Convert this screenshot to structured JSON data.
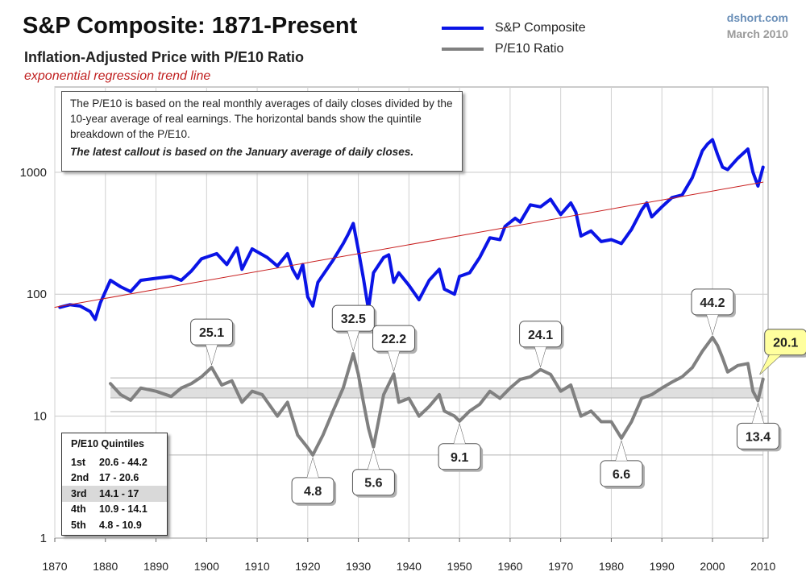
{
  "header": {
    "title": "S&P Composite: 1871-Present",
    "subtitle": "Inflation-Adjusted Price with P/E10 Ratio",
    "trend_note": "exponential regression trend line",
    "source_site": "dshort.com",
    "source_date": "March 2010"
  },
  "legend": [
    {
      "label": "S&P Composite",
      "color": "#0a14e6"
    },
    {
      "label": "P/E10 Ratio",
      "color": "#808080"
    }
  ],
  "note": {
    "text": "The P/E10 is based on the real monthly averages of daily closes divided by the 10-year average of real earnings. The horizontal bands show the quintile breakdown of the P/E10.",
    "bold_text": "The latest callout is based on the January average of daily closes."
  },
  "quintiles": {
    "title": "P/E10 Quintiles",
    "rows": [
      {
        "rank": "1st",
        "range": "20.6 - 44.2"
      },
      {
        "rank": "2nd",
        "range": "17 - 20.6"
      },
      {
        "rank": "3rd",
        "range": "14.1 - 17"
      },
      {
        "rank": "4th",
        "range": "10.9 - 14.1"
      },
      {
        "rank": "5th",
        "range": "4.8 - 10.9"
      }
    ]
  },
  "chart_data": {
    "type": "line",
    "title": "S&P Composite: 1871-Present",
    "yscale": "log",
    "ylim": [
      1,
      5000
    ],
    "xlim": [
      1870,
      2011
    ],
    "y_ticks": [
      1,
      10,
      100,
      1000
    ],
    "x_ticks": [
      1870,
      1880,
      1890,
      1900,
      1910,
      1920,
      1930,
      1940,
      1950,
      1960,
      1970,
      1980,
      1990,
      2000,
      2010
    ],
    "quintile_bands": [
      4.8,
      10.9,
      14.1,
      17,
      20.6
    ],
    "series": [
      {
        "name": "S&P Composite",
        "x": [
          1871,
          1873,
          1875,
          1877,
          1878,
          1879,
          1881,
          1883,
          1885,
          1887,
          1890,
          1893,
          1895,
          1897,
          1899,
          1902,
          1904,
          1906,
          1907,
          1909,
          1912,
          1914,
          1916,
          1917,
          1918,
          1919,
          1920,
          1921,
          1922,
          1925,
          1927,
          1928,
          1929,
          1930,
          1931,
          1932,
          1933,
          1935,
          1936,
          1937,
          1938,
          1940,
          1942,
          1944,
          1946,
          1947,
          1949,
          1950,
          1952,
          1954,
          1956,
          1958,
          1959,
          1961,
          1962,
          1964,
          1966,
          1968,
          1970,
          1972,
          1973,
          1974,
          1976,
          1978,
          1980,
          1982,
          1984,
          1986,
          1987,
          1988,
          1990,
          1992,
          1994,
          1996,
          1998,
          1999,
          2000,
          2001,
          2002,
          2003,
          2005,
          2007,
          2008,
          2009,
          2010
        ],
        "values": [
          78,
          82,
          80,
          72,
          62,
          85,
          130,
          115,
          105,
          130,
          135,
          140,
          130,
          155,
          195,
          215,
          175,
          240,
          160,
          235,
          200,
          170,
          215,
          160,
          135,
          175,
          95,
          80,
          125,
          190,
          260,
          310,
          380,
          230,
          135,
          75,
          150,
          200,
          210,
          125,
          150,
          118,
          90,
          130,
          160,
          110,
          100,
          140,
          150,
          200,
          290,
          280,
          360,
          420,
          390,
          540,
          520,
          600,
          450,
          560,
          470,
          300,
          330,
          270,
          280,
          260,
          340,
          490,
          560,
          430,
          520,
          620,
          650,
          900,
          1500,
          1700,
          1850,
          1400,
          1100,
          1050,
          1300,
          1550,
          1000,
          770,
          1100
        ]
      },
      {
        "name": "P/E10 Ratio",
        "x": [
          1881,
          1883,
          1885,
          1887,
          1890,
          1893,
          1895,
          1897,
          1899,
          1901,
          1903,
          1905,
          1907,
          1909,
          1911,
          1914,
          1916,
          1918,
          1920,
          1921,
          1923,
          1925,
          1927,
          1929,
          1930,
          1931,
          1932,
          1933,
          1935,
          1937,
          1938,
          1940,
          1942,
          1944,
          1946,
          1947,
          1949,
          1950,
          1952,
          1954,
          1956,
          1958,
          1960,
          1962,
          1964,
          1966,
          1968,
          1970,
          1972,
          1974,
          1976,
          1978,
          1980,
          1982,
          1984,
          1986,
          1988,
          1990,
          1992,
          1994,
          1996,
          1998,
          2000,
          2001,
          2002,
          2003,
          2005,
          2007,
          2008,
          2009,
          2010
        ],
        "values": [
          18.5,
          15,
          13.5,
          17,
          16,
          14.5,
          17,
          18.5,
          21,
          25.1,
          18,
          19.5,
          13,
          16,
          15,
          10,
          13,
          7,
          5.5,
          4.8,
          7,
          11,
          17,
          32.5,
          22,
          13,
          8,
          5.6,
          15,
          22.2,
          13,
          14,
          10,
          12,
          15,
          11,
          10,
          9.1,
          11,
          12.5,
          16,
          14,
          17,
          20,
          21,
          24.1,
          22,
          16,
          18,
          10,
          11,
          9,
          9,
          6.6,
          9,
          14,
          15,
          17,
          19,
          21,
          25,
          34,
          44.2,
          38,
          30,
          23,
          26,
          27,
          16,
          13.4,
          20.1
        ]
      },
      {
        "name": "exponential regression trend line",
        "x": [
          1870,
          2010
        ],
        "values": [
          78,
          830
        ]
      }
    ],
    "callouts": [
      {
        "label": "25.1",
        "year": 1901,
        "value": 25.1,
        "position": "above"
      },
      {
        "label": "4.8",
        "year": 1921,
        "value": 4.8,
        "position": "below"
      },
      {
        "label": "32.5",
        "year": 1929,
        "value": 32.5,
        "position": "above"
      },
      {
        "label": "5.6",
        "year": 1933,
        "value": 5.6,
        "position": "below"
      },
      {
        "label": "22.2",
        "year": 1937,
        "value": 22.2,
        "position": "above"
      },
      {
        "label": "9.1",
        "year": 1950,
        "value": 9.1,
        "position": "below"
      },
      {
        "label": "24.1",
        "year": 1966,
        "value": 24.1,
        "position": "above"
      },
      {
        "label": "6.6",
        "year": 1982,
        "value": 6.6,
        "position": "below"
      },
      {
        "label": "44.2",
        "year": 2000,
        "value": 44.2,
        "position": "above"
      },
      {
        "label": "13.4",
        "year": 2009,
        "value": 13.4,
        "position": "below"
      },
      {
        "label": "20.1",
        "year": 2010,
        "value": 20.1,
        "position": "above-right",
        "highlight": true
      }
    ]
  }
}
